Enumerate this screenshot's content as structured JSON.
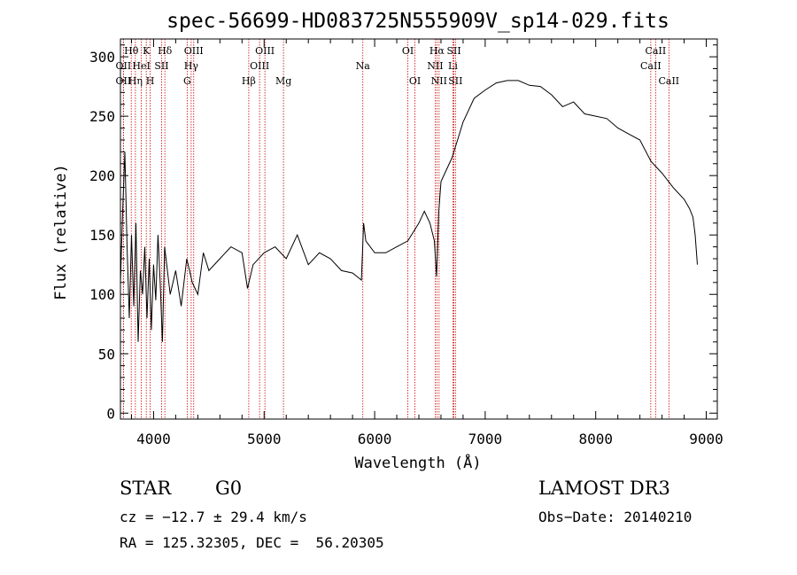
{
  "chart_data": {
    "type": "line",
    "title": "spec-56699-HD083725N555909V_sp14-029.fits",
    "xlabel": "Wavelength (Å)",
    "ylabel": "Flux (relative)",
    "xlim": [
      3700,
      9100
    ],
    "ylim": [
      -5,
      315
    ],
    "x_ticks": [
      4000,
      5000,
      6000,
      7000,
      8000,
      9000
    ],
    "y_ticks": [
      0,
      50,
      100,
      150,
      200,
      250,
      300
    ],
    "line_color": "#000000",
    "marker_color": "#cc0000",
    "series": [
      {
        "name": "flux",
        "x": [
          3700,
          3720,
          3740,
          3760,
          3780,
          3800,
          3820,
          3840,
          3860,
          3880,
          3900,
          3920,
          3940,
          3960,
          3980,
          4000,
          4020,
          4040,
          4060,
          4080,
          4100,
          4150,
          4200,
          4250,
          4300,
          4350,
          4400,
          4450,
          4500,
          4600,
          4700,
          4800,
          4850,
          4900,
          5000,
          5100,
          5200,
          5300,
          5400,
          5500,
          5600,
          5700,
          5800,
          5880,
          5900,
          5920,
          6000,
          6100,
          6200,
          6300,
          6400,
          6450,
          6500,
          6540,
          6560,
          6580,
          6600,
          6650,
          6700,
          6750,
          6800,
          6900,
          7000,
          7100,
          7200,
          7300,
          7400,
          7500,
          7600,
          7700,
          7800,
          7900,
          8000,
          8100,
          8200,
          8300,
          8400,
          8500,
          8600,
          8700,
          8800,
          8850,
          8880,
          8900,
          8920
        ],
        "y": [
          110,
          170,
          220,
          140,
          80,
          150,
          90,
          160,
          60,
          120,
          100,
          140,
          80,
          130,
          70,
          125,
          95,
          150,
          110,
          60,
          140,
          100,
          120,
          90,
          130,
          110,
          100,
          135,
          120,
          130,
          140,
          135,
          105,
          125,
          135,
          140,
          130,
          150,
          125,
          135,
          130,
          120,
          118,
          112,
          160,
          145,
          135,
          135,
          140,
          145,
          160,
          170,
          160,
          145,
          115,
          170,
          195,
          205,
          215,
          230,
          245,
          265,
          272,
          278,
          280,
          280,
          276,
          275,
          268,
          258,
          262,
          252,
          250,
          248,
          240,
          235,
          230,
          212,
          202,
          190,
          180,
          172,
          165,
          150,
          125
        ]
      }
    ],
    "spectral_lines": [
      {
        "label": "Hθ",
        "x": 3798,
        "row": 1
      },
      {
        "label": "OII",
        "x": 3727,
        "row": 2
      },
      {
        "label": "OII",
        "x": 3727,
        "row": 3
      },
      {
        "label": "Hη",
        "x": 3835,
        "row": 3
      },
      {
        "label": "K",
        "x": 3934,
        "row": 1
      },
      {
        "label": "HeI",
        "x": 3889,
        "row": 2
      },
      {
        "label": "H",
        "x": 3969,
        "row": 3
      },
      {
        "label": "SII",
        "x": 4072,
        "row": 2
      },
      {
        "label": "Hδ",
        "x": 4102,
        "row": 1
      },
      {
        "label": "OIII",
        "x": 4363,
        "row": 1
      },
      {
        "label": "Hγ",
        "x": 4340,
        "row": 2
      },
      {
        "label": "G",
        "x": 4304,
        "row": 3
      },
      {
        "label": "OIII",
        "x": 5007,
        "row": 1
      },
      {
        "label": "OIII",
        "x": 4959,
        "row": 2
      },
      {
        "label": "Hβ",
        "x": 4861,
        "row": 3
      },
      {
        "label": "Mg",
        "x": 5175,
        "row": 3
      },
      {
        "label": "Na",
        "x": 5893,
        "row": 2
      },
      {
        "label": "OI",
        "x": 6300,
        "row": 1
      },
      {
        "label": "OI",
        "x": 6364,
        "row": 3
      },
      {
        "label": "Hα",
        "x": 6563,
        "row": 1
      },
      {
        "label": "NII",
        "x": 6548,
        "row": 2
      },
      {
        "label": "NII",
        "x": 6583,
        "row": 3
      },
      {
        "label": "SII",
        "x": 6717,
        "row": 1
      },
      {
        "label": "Li",
        "x": 6708,
        "row": 2
      },
      {
        "label": "SII",
        "x": 6731,
        "row": 3
      },
      {
        "label": "CaII",
        "x": 8542,
        "row": 1
      },
      {
        "label": "CaII",
        "x": 8498,
        "row": 2
      },
      {
        "label": "CaII",
        "x": 8662,
        "row": 3
      }
    ]
  },
  "info": {
    "object_class": "STAR",
    "subclass": "G0",
    "survey": "LAMOST DR3",
    "cz": "cz = −12.7 ± 29.4 km/s",
    "obs_date": "Obs−Date: 20140210",
    "coords": "RA = 125.32305, DEC =  56.20305"
  }
}
